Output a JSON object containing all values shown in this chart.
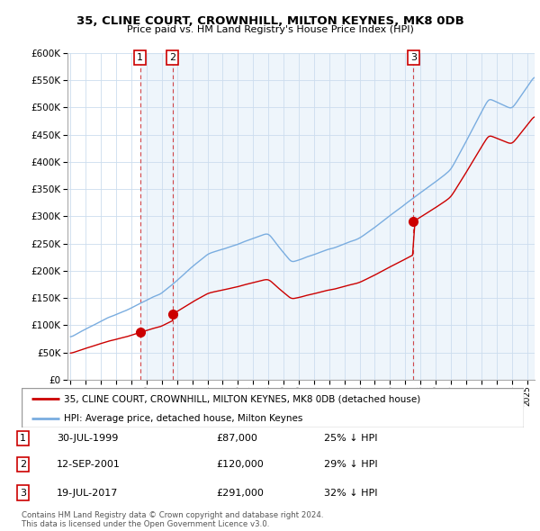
{
  "title": "35, CLINE COURT, CROWNHILL, MILTON KEYNES, MK8 0DB",
  "subtitle": "Price paid vs. HM Land Registry's House Price Index (HPI)",
  "legend_line1": "35, CLINE COURT, CROWNHILL, MILTON KEYNES, MK8 0DB (detached house)",
  "legend_line2": "HPI: Average price, detached house, Milton Keynes",
  "transactions": [
    {
      "num": 1,
      "date": "30-JUL-1999",
      "date_val": 1999.57,
      "price": 87000,
      "label": "25% ↓ HPI"
    },
    {
      "num": 2,
      "date": "12-SEP-2001",
      "date_val": 2001.7,
      "price": 120000,
      "label": "29% ↓ HPI"
    },
    {
      "num": 3,
      "date": "19-JUL-2017",
      "date_val": 2017.54,
      "price": 291000,
      "label": "32% ↓ HPI"
    }
  ],
  "footer1": "Contains HM Land Registry data © Crown copyright and database right 2024.",
  "footer2": "This data is licensed under the Open Government Licence v3.0.",
  "red_color": "#cc0000",
  "blue_color": "#7aade0",
  "blue_fill": "#d0e4f5",
  "ylim": [
    0,
    600000
  ],
  "yticks": [
    0,
    50000,
    100000,
    150000,
    200000,
    250000,
    300000,
    350000,
    400000,
    450000,
    500000,
    550000,
    600000
  ],
  "xlim_start": 1994.8,
  "xlim_end": 2025.5,
  "xticks": [
    1995,
    1996,
    1997,
    1998,
    1999,
    2000,
    2001,
    2002,
    2003,
    2004,
    2005,
    2006,
    2007,
    2008,
    2009,
    2010,
    2011,
    2012,
    2013,
    2014,
    2015,
    2016,
    2017,
    2018,
    2019,
    2020,
    2021,
    2022,
    2023,
    2024,
    2025
  ]
}
